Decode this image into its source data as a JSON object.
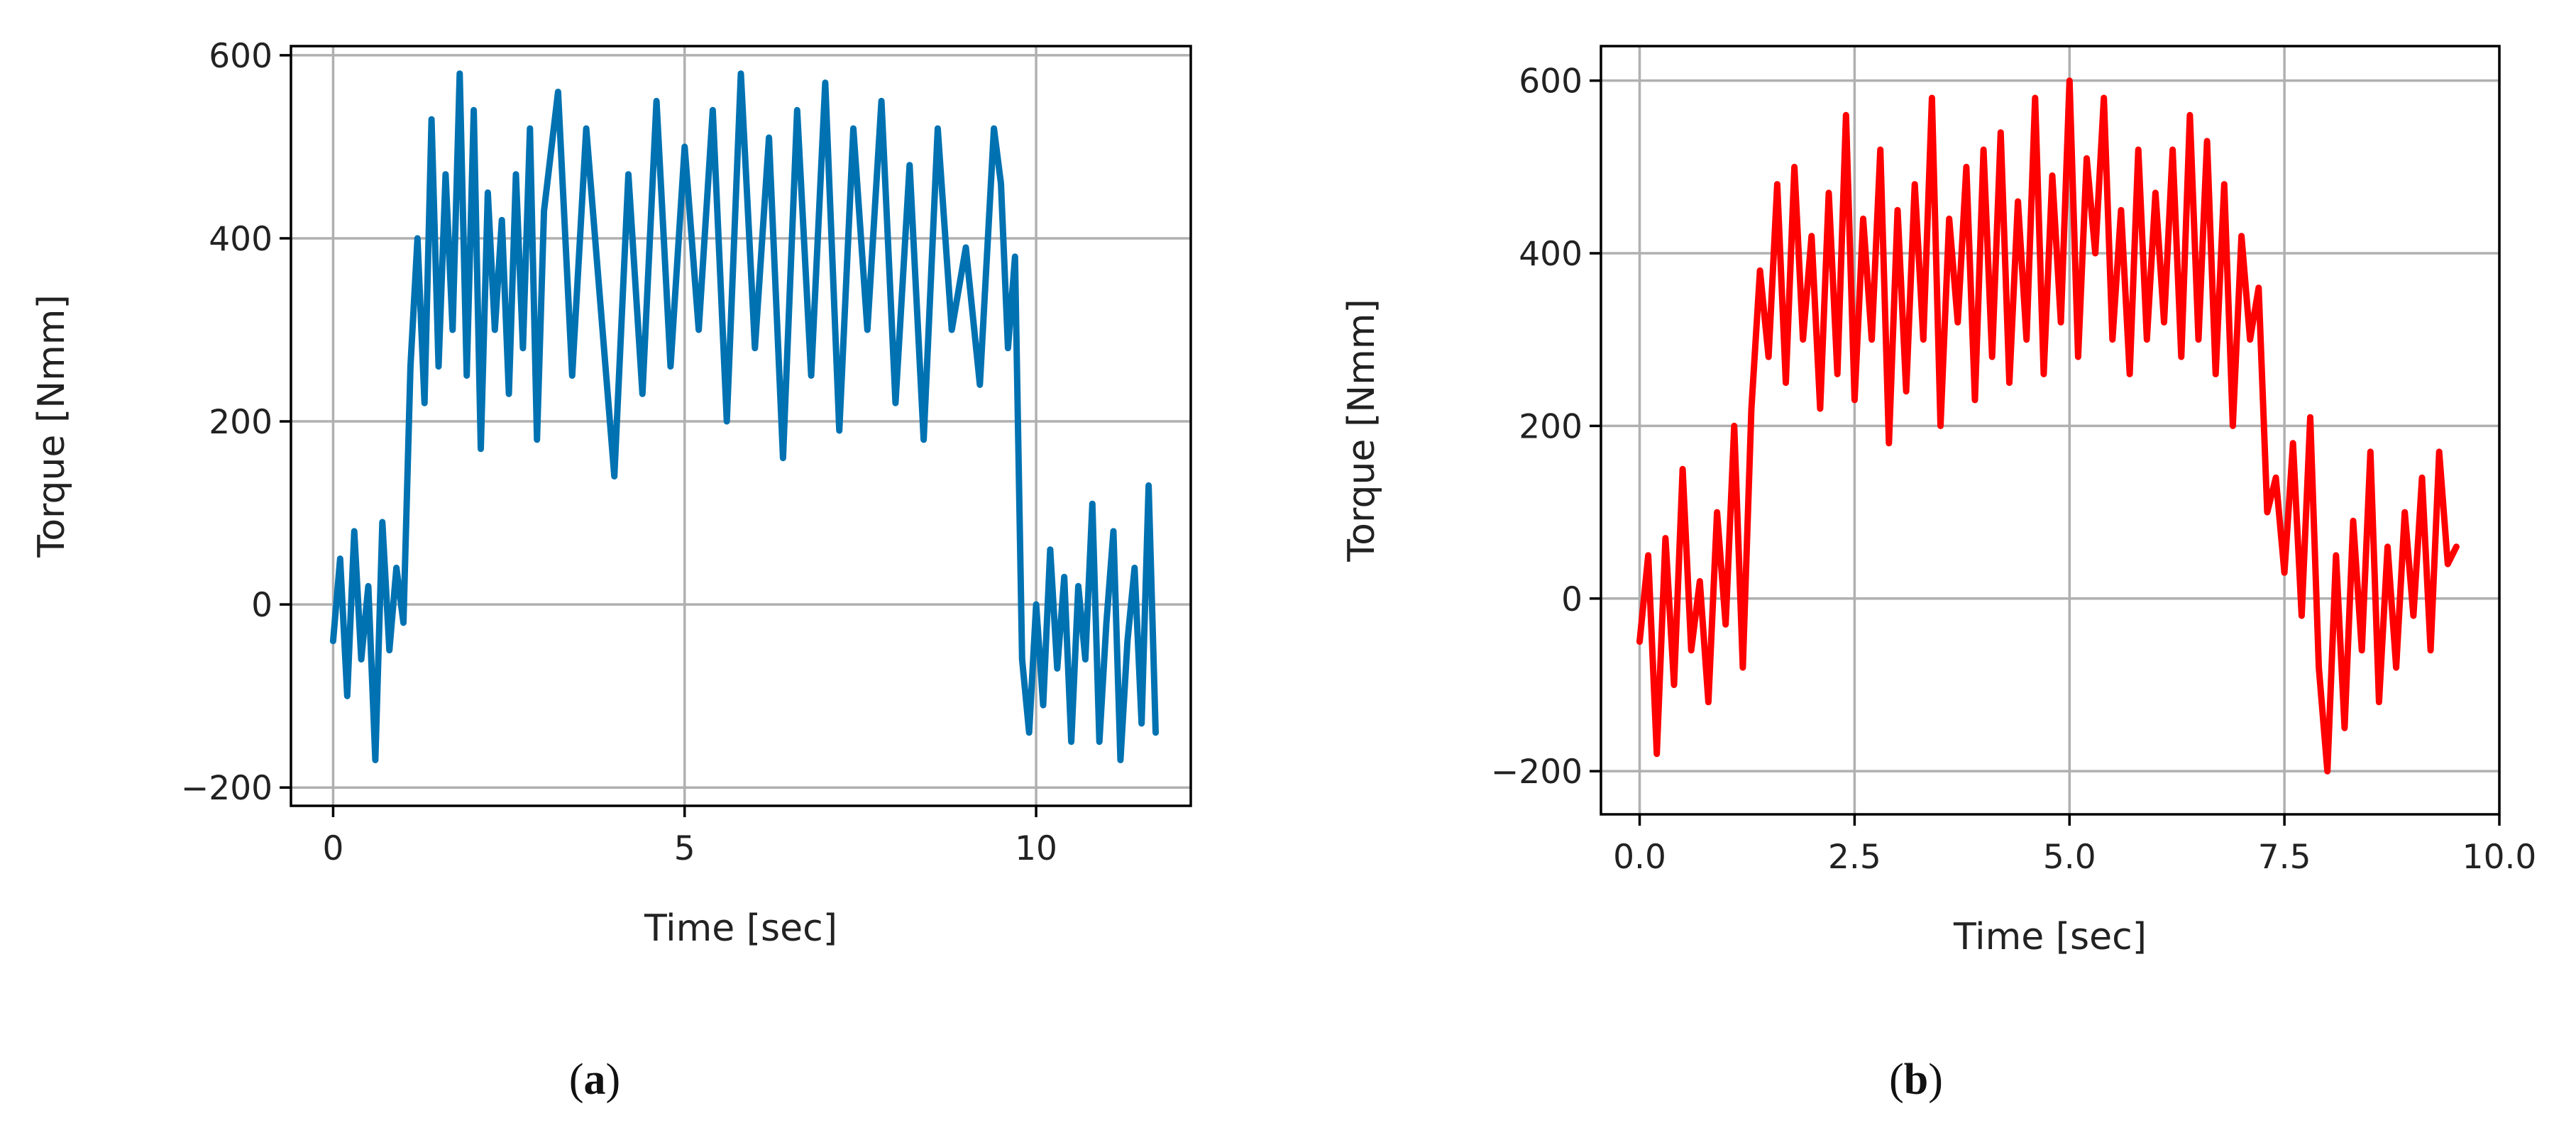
{
  "figure": {
    "captions": [
      {
        "open": "(",
        "letter": "a",
        "close": ")"
      },
      {
        "open": "(",
        "letter": "b",
        "close": ")"
      }
    ]
  },
  "chart_data": [
    {
      "type": "line",
      "xlabel": "Time [sec]",
      "ylabel": "Torque [Nmm]",
      "xlim": [
        -0.6,
        12.2
      ],
      "ylim": [
        -220,
        610
      ],
      "xticks": [
        0,
        5,
        10
      ],
      "xtick_labels": [
        "0",
        "5",
        "10"
      ],
      "yticks": [
        -200,
        0,
        200,
        400,
        600
      ],
      "ytick_labels": [
        "−200",
        "0",
        "200",
        "400",
        "600"
      ],
      "grid": true,
      "series": [
        {
          "color": "#0072b2",
          "x": [
            0.0,
            0.1,
            0.2,
            0.3,
            0.4,
            0.5,
            0.6,
            0.7,
            0.8,
            0.9,
            1.0,
            1.1,
            1.2,
            1.3,
            1.4,
            1.5,
            1.6,
            1.7,
            1.8,
            1.9,
            2.0,
            2.1,
            2.2,
            2.3,
            2.4,
            2.5,
            2.6,
            2.7,
            2.8,
            2.9,
            3.0,
            3.2,
            3.4,
            3.6,
            3.8,
            4.0,
            4.2,
            4.4,
            4.6,
            4.8,
            5.0,
            5.2,
            5.4,
            5.6,
            5.8,
            6.0,
            6.2,
            6.4,
            6.6,
            6.8,
            7.0,
            7.2,
            7.4,
            7.6,
            7.8,
            8.0,
            8.2,
            8.4,
            8.6,
            8.8,
            9.0,
            9.2,
            9.4,
            9.5,
            9.6,
            9.7,
            9.8,
            9.9,
            10.0,
            10.1,
            10.2,
            10.3,
            10.4,
            10.5,
            10.6,
            10.7,
            10.8,
            10.9,
            11.0,
            11.1,
            11.2,
            11.3,
            11.4,
            11.5,
            11.6,
            11.7
          ],
          "y": [
            -40,
            50,
            -100,
            80,
            -60,
            20,
            -170,
            90,
            -50,
            40,
            -20,
            260,
            400,
            220,
            530,
            260,
            470,
            300,
            580,
            250,
            540,
            170,
            450,
            300,
            420,
            230,
            470,
            280,
            520,
            180,
            430,
            560,
            250,
            520,
            330,
            140,
            470,
            230,
            550,
            260,
            500,
            300,
            540,
            200,
            580,
            280,
            510,
            160,
            540,
            250,
            570,
            190,
            520,
            300,
            550,
            220,
            480,
            180,
            520,
            300,
            390,
            240,
            520,
            460,
            280,
            380,
            -60,
            -140,
            0,
            -110,
            60,
            -70,
            30,
            -150,
            20,
            -60,
            110,
            -150,
            -20,
            80,
            -170,
            -40,
            40,
            -130,
            130,
            -140
          ]
        }
      ]
    },
    {
      "type": "line",
      "xlabel": "Time [sec]",
      "ylabel": "Torque [Nmm]",
      "xlim": [
        -0.45,
        10.0
      ],
      "ylim": [
        -250,
        640
      ],
      "xticks": [
        0.0,
        2.5,
        5.0,
        7.5,
        10.0
      ],
      "xtick_labels": [
        "0.0",
        "2.5",
        "5.0",
        "7.5",
        "10.0"
      ],
      "yticks": [
        -200,
        0,
        200,
        400,
        600
      ],
      "ytick_labels": [
        "−200",
        "0",
        "200",
        "400",
        "600"
      ],
      "grid": true,
      "series": [
        {
          "color": "#ff0000",
          "x": [
            0.0,
            0.1,
            0.2,
            0.3,
            0.4,
            0.5,
            0.6,
            0.7,
            0.8,
            0.9,
            1.0,
            1.1,
            1.2,
            1.3,
            1.4,
            1.5,
            1.6,
            1.7,
            1.8,
            1.9,
            2.0,
            2.1,
            2.2,
            2.3,
            2.4,
            2.5,
            2.6,
            2.7,
            2.8,
            2.9,
            3.0,
            3.1,
            3.2,
            3.3,
            3.4,
            3.5,
            3.6,
            3.7,
            3.8,
            3.9,
            4.0,
            4.1,
            4.2,
            4.3,
            4.4,
            4.5,
            4.6,
            4.7,
            4.8,
            4.9,
            5.0,
            5.1,
            5.2,
            5.3,
            5.4,
            5.5,
            5.6,
            5.7,
            5.8,
            5.9,
            6.0,
            6.1,
            6.2,
            6.3,
            6.4,
            6.5,
            6.6,
            6.7,
            6.8,
            6.9,
            7.0,
            7.1,
            7.2,
            7.3,
            7.4,
            7.5,
            7.6,
            7.7,
            7.8,
            7.9,
            8.0,
            8.1,
            8.2,
            8.3,
            8.4,
            8.5,
            8.6,
            8.7,
            8.8,
            8.9,
            9.0,
            9.1,
            9.2,
            9.3,
            9.4,
            9.5
          ],
          "y": [
            -50,
            50,
            -180,
            70,
            -100,
            150,
            -60,
            20,
            -120,
            100,
            -30,
            200,
            -80,
            220,
            380,
            280,
            480,
            250,
            500,
            300,
            420,
            220,
            470,
            260,
            560,
            230,
            440,
            300,
            520,
            180,
            450,
            240,
            480,
            300,
            580,
            200,
            440,
            320,
            500,
            230,
            520,
            280,
            540,
            250,
            460,
            300,
            580,
            260,
            490,
            320,
            600,
            280,
            510,
            400,
            580,
            300,
            450,
            260,
            520,
            300,
            470,
            320,
            520,
            280,
            560,
            300,
            530,
            260,
            480,
            200,
            420,
            300,
            360,
            100,
            140,
            30,
            180,
            -20,
            210,
            -80,
            -200,
            50,
            -150,
            90,
            -60,
            170,
            -120,
            60,
            -80,
            100,
            -20,
            140,
            -60,
            170,
            40,
            60
          ]
        }
      ]
    }
  ]
}
